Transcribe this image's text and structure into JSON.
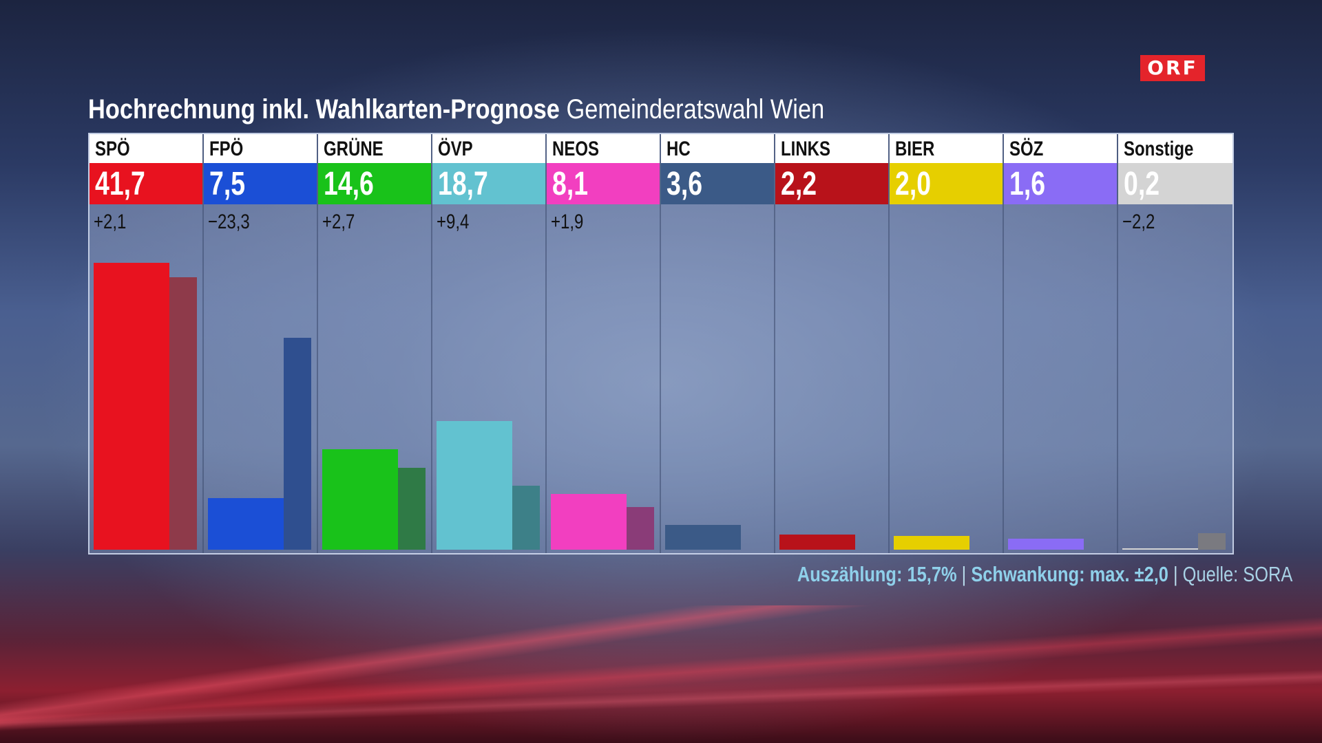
{
  "logo": "ORF",
  "chart_title": "Hochrechnung inkl. Wahlkarten-Prognose",
  "chart_subtitle": "Gemeinderatswahl Wien",
  "footer": {
    "count": "Auszählung: 15,7%",
    "margin": "Schwankung: max. ±2,0",
    "source": "Quelle: SORA",
    "separator": "|"
  },
  "chart_data": {
    "type": "bar",
    "title": "Hochrechnung inkl. Wahlkarten-Prognose",
    "subtitle": "Gemeinderatswahl Wien",
    "ylim": [
      0,
      45
    ],
    "categories": [
      "SPÖ",
      "FPÖ",
      "GRÜNE",
      "ÖVP",
      "NEOS",
      "HC",
      "LINKS",
      "BIER",
      "SÖZ",
      "Sonstige"
    ],
    "value_labels": [
      "41,7",
      "7,5",
      "14,6",
      "18,7",
      "8,1",
      "3,6",
      "2,2",
      "2,0",
      "1,6",
      "0,2"
    ],
    "diff_labels": [
      "+2,1",
      "−23,3",
      "+2,7",
      "+9,4",
      "+1,9",
      "",
      "",
      "",
      "",
      "−2,2"
    ],
    "colors": [
      "#e8121f",
      "#1b4fd6",
      "#19c21a",
      "#62c2d0",
      "#f23fc0",
      "#3b5a87",
      "#b8121a",
      "#e6cf00",
      "#8a6cf5",
      "#d4d4d4"
    ],
    "prev_colors": [
      "#8e3a4a",
      "#2f4f8f",
      "#2f7a46",
      "#3d8088",
      "#8a3c78",
      "#3a4f70",
      "#6b2a36",
      "#8a7a2a",
      "#6a5ab0",
      "#7a7a80"
    ],
    "series": [
      {
        "values": [
          41.7,
          7.5,
          14.6,
          18.7,
          8.1,
          3.6,
          2.2,
          2.0,
          1.6,
          0.2
        ]
      },
      {
        "values": [
          39.6,
          30.8,
          11.9,
          9.3,
          6.2,
          null,
          null,
          null,
          null,
          2.4
        ]
      }
    ]
  }
}
